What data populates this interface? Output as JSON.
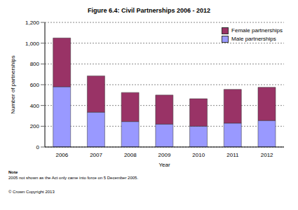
{
  "chart_data": {
    "type": "bar",
    "title": "Figure 6.4: Civil Partnerships 2006 - 2012",
    "x_label": "Year",
    "y_label": "Number of partnerships",
    "categories": [
      "2006",
      "2007",
      "2008",
      "2009",
      "2010",
      "2011",
      "2012"
    ],
    "series": [
      {
        "name": "Female partnerships",
        "color": "#993366",
        "values": [
          470,
          350,
          280,
          280,
          265,
          325,
          320
        ]
      },
      {
        "name": "Male partnerships",
        "color": "#9999ff",
        "values": [
          580,
          335,
          245,
          220,
          200,
          230,
          255
        ]
      }
    ],
    "stacked": true,
    "ylim": [
      0,
      1200
    ],
    "yticks": [
      0,
      200,
      400,
      600,
      800,
      {
        "value": 1000,
        "label": "1,000"
      },
      {
        "value": 1200,
        "label": "1,200"
      }
    ],
    "grid": true,
    "legend": "upper right",
    "notes": [
      "Note",
      "2005 not shown as the Act only came into force on 5 December 2005."
    ],
    "footer": "© Crown Copyright 2013"
  }
}
